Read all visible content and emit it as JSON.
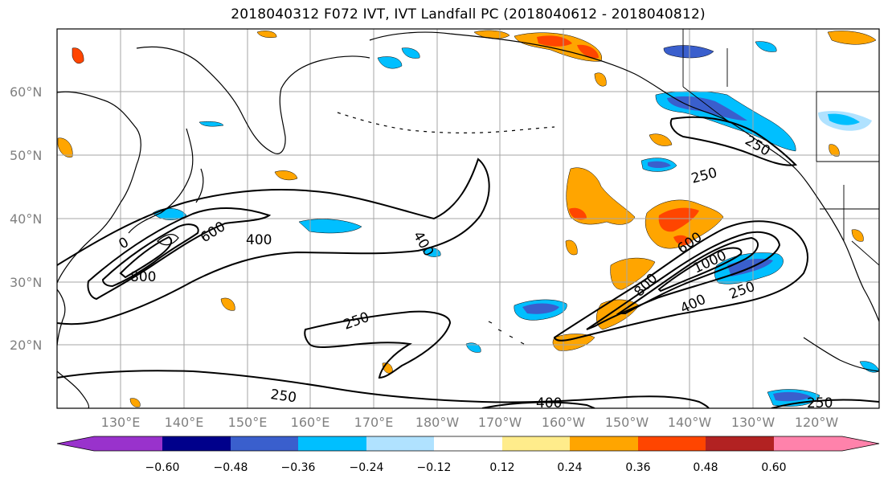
{
  "title": "2018040312 F072 IVT, IVT Landfall PC (2018040612 - 2018040812)",
  "lat_labels": [
    "60°N",
    "50°N",
    "40°N",
    "30°N",
    "20°N"
  ],
  "lon_labels": [
    "130°E",
    "140°E",
    "150°E",
    "160°E",
    "170°E",
    "180°W",
    "170°W",
    "160°W",
    "150°W",
    "140°W",
    "130°W",
    "120°W"
  ],
  "contour_labels": [
    "400",
    "600",
    "800",
    "0",
    "400",
    "250",
    "250",
    "600",
    "800",
    "1000",
    "400",
    "250",
    "250",
    "250",
    "400",
    "250"
  ],
  "colorbar": {
    "ticks": [
      "−0.60",
      "−0.48",
      "−0.36",
      "−0.24",
      "−0.12",
      "0.12",
      "0.24",
      "0.36",
      "0.48",
      "0.60"
    ],
    "colors": [
      "#9932cc",
      "#00008b",
      "#3a5fcd",
      "#00bfff",
      "#b0e2ff",
      "#ffffff",
      "#ffec8b",
      "#ffa500",
      "#ff4500",
      "#b22222",
      "#ff82ab"
    ]
  },
  "fill_colors": {
    "blue_light": "#b0e2ff",
    "blue_mid": "#00bfff",
    "blue_dark": "#3a5fcd",
    "yellow": "#ffec8b",
    "orange": "#ffa500",
    "red": "#ff4500"
  }
}
